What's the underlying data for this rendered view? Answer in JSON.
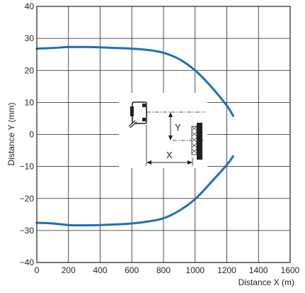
{
  "chart_data": {
    "type": "line",
    "title": "",
    "xlabel": "Distance X (m)",
    "ylabel": "Distance Y (mm)",
    "xlim": [
      0,
      1600
    ],
    "ylim": [
      -40,
      40
    ],
    "x_ticks": [
      "0",
      "200",
      "400",
      "600",
      "800",
      "1000",
      "1200",
      "1400",
      "1600"
    ],
    "y_ticks": [
      "40",
      "30",
      "20",
      "10",
      "0",
      "−10",
      "−20",
      "−30",
      "−40"
    ],
    "grid": true,
    "x_tick_step": 200,
    "y_tick_step": 10,
    "series": [
      {
        "color": "#1f6fb5",
        "x": [
          0,
          100,
          200,
          300,
          400,
          500,
          600,
          700,
          800,
          900,
          1000,
          1100,
          1200,
          1240
        ],
        "values": [
          26.8,
          27.0,
          27.3,
          27.3,
          27.2,
          27.0,
          26.8,
          26.4,
          25.5,
          23.5,
          20.0,
          15.0,
          9.0,
          5.8
        ]
      },
      {
        "color": "#1f6fb5",
        "x": [
          0,
          100,
          200,
          300,
          400,
          500,
          600,
          700,
          800,
          900,
          1000,
          1100,
          1200,
          1240
        ],
        "values": [
          -27.6,
          -27.8,
          -28.3,
          -28.4,
          -28.3,
          -28.1,
          -27.8,
          -27.2,
          -26.2,
          -23.8,
          -20.2,
          -15.0,
          -9.5,
          -6.8
        ]
      }
    ],
    "inset": {
      "x_label": "X",
      "y_label": "Y"
    }
  }
}
